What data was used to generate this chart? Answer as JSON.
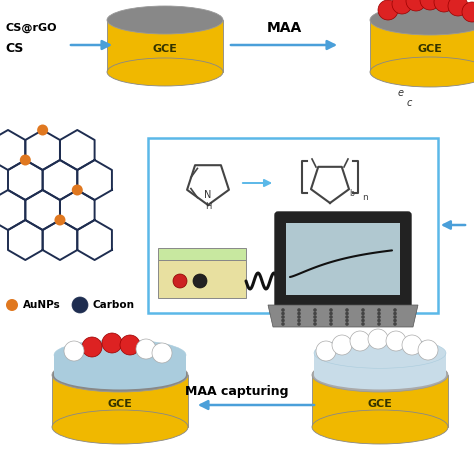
{
  "bg_color": "#ffffff",
  "gce_body_color": "#F5C518",
  "gce_top_color": "#888888",
  "gce_side_color": "#F0B800",
  "red_particle": "#DD2222",
  "white_particle": "#FFFFFF",
  "dark_navy": "#1E2D50",
  "orange_node": "#E07820",
  "arrow_color": "#4A9FD9",
  "box_color": "#5BB8E8",
  "label_gce": "GCE",
  "label_maa": "MAA",
  "label_maa_capturing": "MAA capturing",
  "label_cs_rgo": "CS@rGO",
  "label_cs": "CS",
  "label_aunps": "AuNPs",
  "label_carbon": "Carbon",
  "green_pot": "#C8E8A0",
  "pot_body": "#E8E0A0",
  "laptop_black": "#222222",
  "laptop_gray": "#888888",
  "screen_bg": "#B0C8D0"
}
